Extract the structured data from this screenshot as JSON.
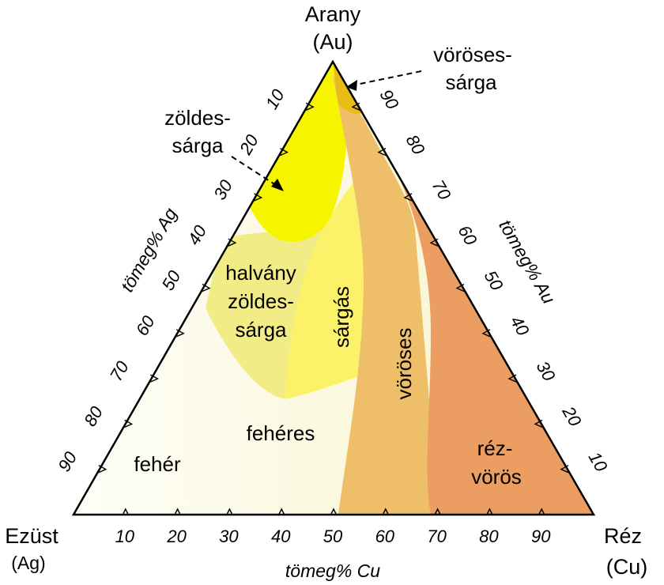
{
  "vertices": {
    "top": {
      "name": "Arany",
      "symbol": "(Au)"
    },
    "left": {
      "name": "Ezüst",
      "symbol": "(Ag)"
    },
    "right": {
      "name": "Réz",
      "symbol": "(Cu)"
    }
  },
  "axes": {
    "ag": "tömeg% Ag",
    "au": "tömeg% Au",
    "cu": "tömeg% Cu"
  },
  "ticks": {
    "cu": [
      "10",
      "20",
      "30",
      "40",
      "50",
      "60",
      "70",
      "80",
      "90"
    ],
    "ag": [
      "10",
      "20",
      "30",
      "40",
      "50",
      "60",
      "70",
      "80",
      "90"
    ],
    "au": [
      "90",
      "80",
      "70",
      "60",
      "50",
      "40",
      "30",
      "20",
      "10"
    ]
  },
  "regions": {
    "voroses_sarga": [
      "vöröses-",
      "sárga"
    ],
    "zoldes_sarga": [
      "zöldes-",
      "sárga"
    ],
    "halvany": [
      "halvány",
      "zöldes-",
      "sárga"
    ],
    "sargas": "sárgás",
    "voroses": "vöröses",
    "feheres": "fehéres",
    "feher": "fehér",
    "rezvoros": [
      "réz-",
      "vörös"
    ]
  },
  "colors": {
    "feher": "#ffffff",
    "feheres": "#f6f3c2",
    "halvany": "#f2ec86",
    "sargas": "#fcf26a",
    "zoldes": "#f7f400",
    "voroses": "#eebf68",
    "rezvoros": "#ec9d62",
    "voroses_sarga": "#e8bb16",
    "outline": "#000000"
  }
}
